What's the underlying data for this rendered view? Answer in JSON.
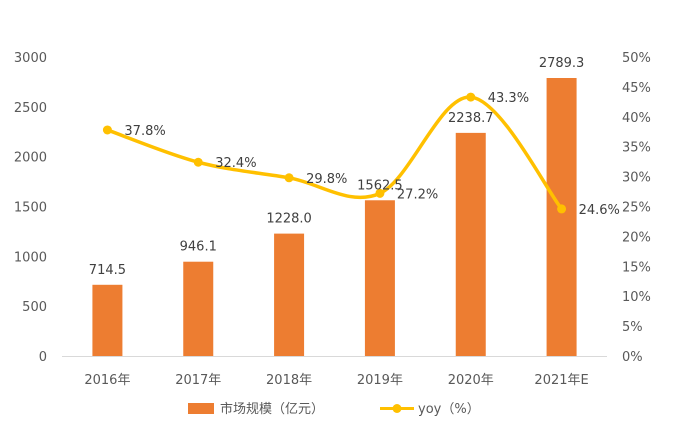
{
  "chart_data": {
    "type": "bar",
    "categories": [
      "2016年",
      "2017年",
      "2018年",
      "2019年",
      "2020年",
      "2021年E"
    ],
    "series": [
      {
        "name": "市场规模（亿元）",
        "type": "bar",
        "axis": "left",
        "values": [
          714.5,
          946.1,
          1228.0,
          1562.5,
          2238.7,
          2789.3
        ],
        "labels": [
          "714.5",
          "946.1",
          "1228.0",
          "1562.5",
          "2238.7",
          "2789.3"
        ],
        "color": "#ED7D31"
      },
      {
        "name": "yoy（%）",
        "type": "line",
        "axis": "right",
        "values": [
          37.8,
          32.4,
          29.8,
          27.2,
          43.3,
          24.6
        ],
        "labels": [
          "37.8%",
          "32.4%",
          "29.8%",
          "27.2%",
          "43.3%",
          "24.6%"
        ],
        "color": "#FFC000",
        "smooth": true
      }
    ],
    "y_left": {
      "min": 0,
      "max": 3000,
      "ticks": [
        0,
        500,
        1000,
        1500,
        2000,
        2500,
        3000
      ],
      "tick_labels": [
        "0",
        "500",
        "1000",
        "1500",
        "2000",
        "2500",
        "3000"
      ]
    },
    "y_right": {
      "min": 0,
      "max": 50,
      "ticks": [
        0,
        5,
        10,
        15,
        20,
        25,
        30,
        35,
        40,
        45,
        50
      ],
      "tick_labels": [
        "0%",
        "5%",
        "10%",
        "15%",
        "20%",
        "25%",
        "30%",
        "35%",
        "40%",
        "45%",
        "50%"
      ]
    },
    "grid": false,
    "legend_position": "bottom",
    "title": "",
    "xlabel": "",
    "ylabel": ""
  }
}
